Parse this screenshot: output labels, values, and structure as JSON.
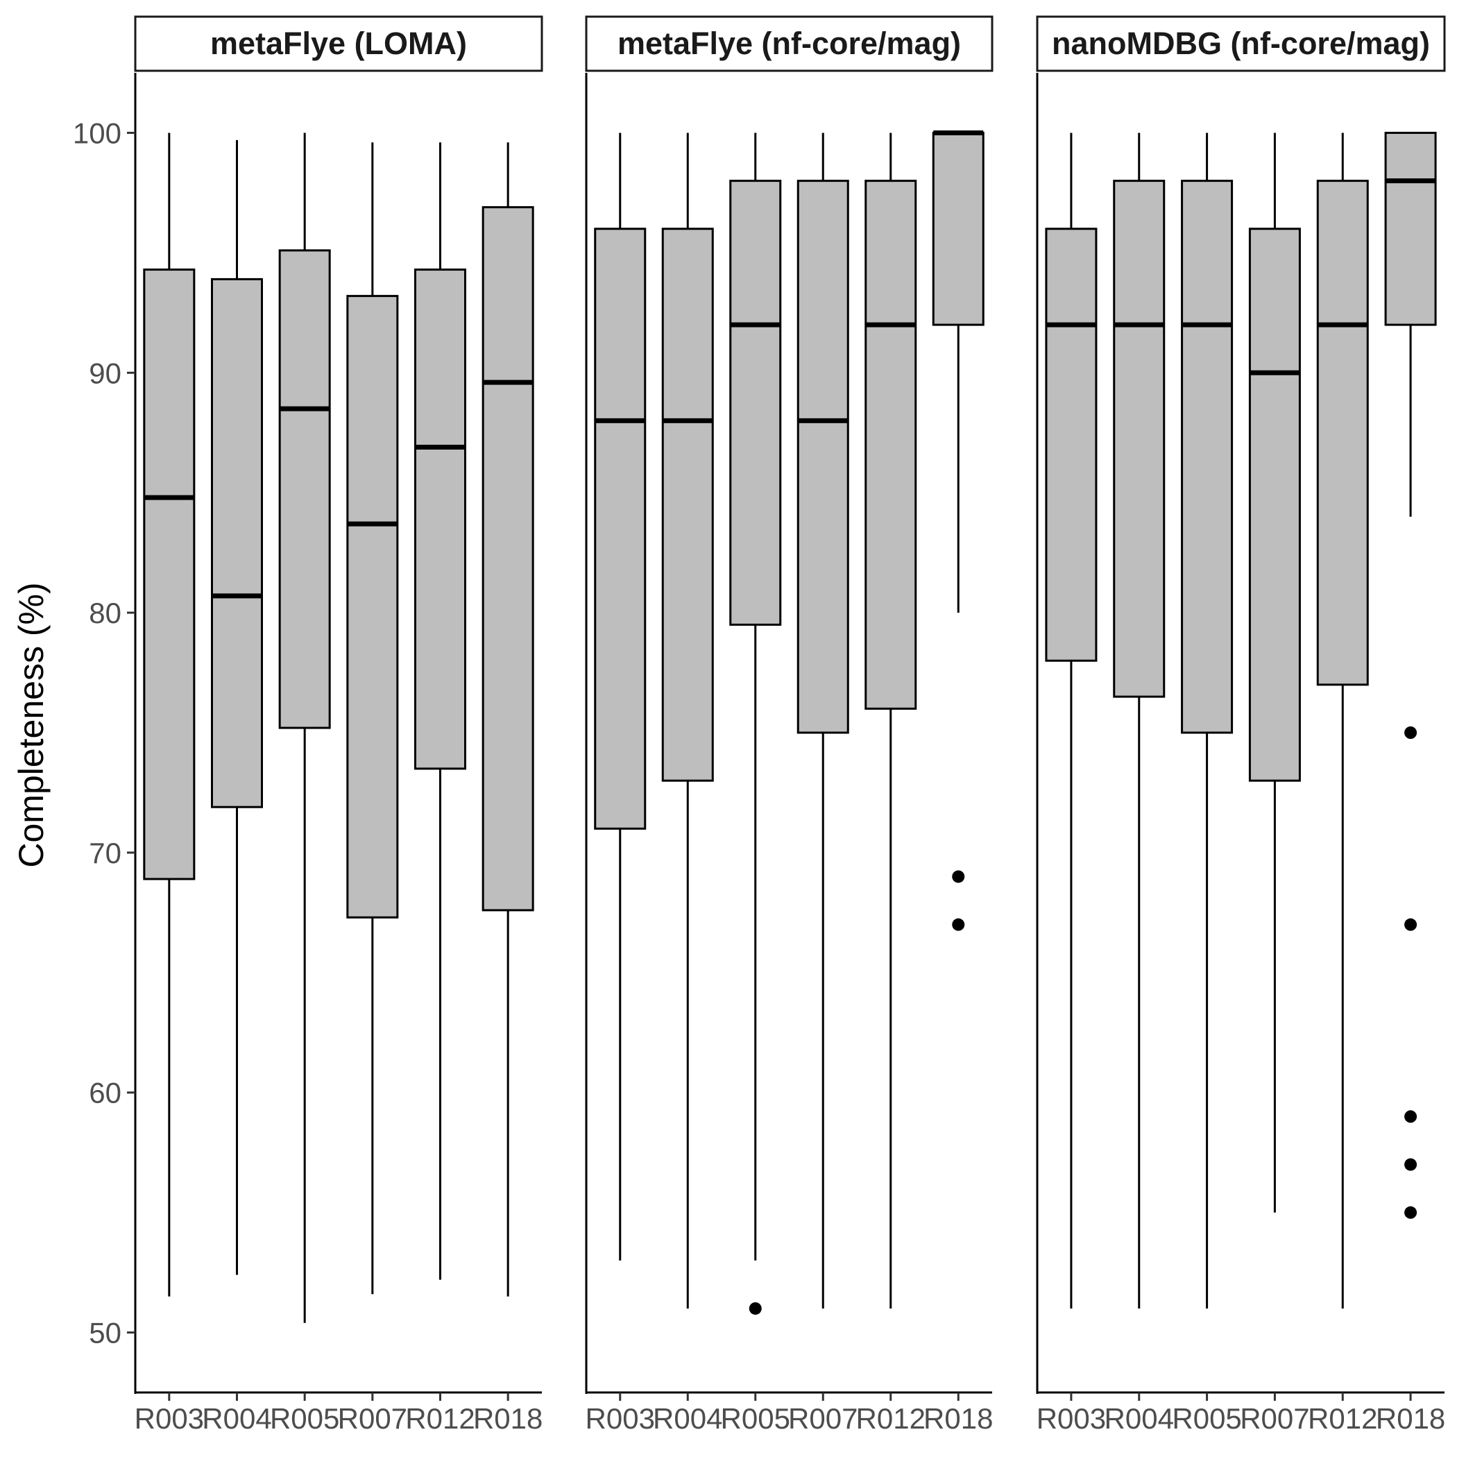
{
  "chart_data": {
    "type": "boxplot",
    "ylabel": "Completeness (%)",
    "xlabel": "",
    "ylim": [
      47.5,
      102.5
    ],
    "yticks": [
      50,
      60,
      70,
      80,
      90,
      100
    ],
    "grid": false,
    "box_fill": "#bebebe",
    "line_color": "#000000",
    "categories": [
      "R003",
      "R004",
      "R005",
      "R007",
      "R012",
      "R018"
    ],
    "panels": [
      {
        "title": "metaFlye (LOMA)",
        "boxes": [
          {
            "category": "R003",
            "whisker_low": 51.5,
            "q1": 68.9,
            "median": 84.8,
            "q3": 94.3,
            "whisker_high": 100,
            "outliers": []
          },
          {
            "category": "R004",
            "whisker_low": 52.4,
            "q1": 71.9,
            "median": 80.7,
            "q3": 93.9,
            "whisker_high": 99.7,
            "outliers": []
          },
          {
            "category": "R005",
            "whisker_low": 50.4,
            "q1": 75.2,
            "median": 88.5,
            "q3": 95.1,
            "whisker_high": 100,
            "outliers": []
          },
          {
            "category": "R007",
            "whisker_low": 51.6,
            "q1": 67.3,
            "median": 83.7,
            "q3": 93.2,
            "whisker_high": 99.6,
            "outliers": []
          },
          {
            "category": "R012",
            "whisker_low": 52.2,
            "q1": 73.5,
            "median": 86.9,
            "q3": 94.3,
            "whisker_high": 99.6,
            "outliers": []
          },
          {
            "category": "R018",
            "whisker_low": 51.5,
            "q1": 67.6,
            "median": 89.6,
            "q3": 96.9,
            "whisker_high": 99.6,
            "outliers": []
          }
        ]
      },
      {
        "title": "metaFlye (nf-core/mag)",
        "boxes": [
          {
            "category": "R003",
            "whisker_low": 53,
            "q1": 71,
            "median": 88,
            "q3": 96,
            "whisker_high": 100,
            "outliers": []
          },
          {
            "category": "R004",
            "whisker_low": 51,
            "q1": 73,
            "median": 88,
            "q3": 96,
            "whisker_high": 100,
            "outliers": []
          },
          {
            "category": "R005",
            "whisker_low": 53,
            "q1": 79.5,
            "median": 92,
            "q3": 98,
            "whisker_high": 100,
            "outliers": [
              51
            ]
          },
          {
            "category": "R007",
            "whisker_low": 51,
            "q1": 75,
            "median": 88,
            "q3": 98,
            "whisker_high": 100,
            "outliers": []
          },
          {
            "category": "R012",
            "whisker_low": 51,
            "q1": 76,
            "median": 92,
            "q3": 98,
            "whisker_high": 100,
            "outliers": []
          },
          {
            "category": "R018",
            "whisker_low": 80,
            "q1": 92,
            "median": 100,
            "q3": 100,
            "whisker_high": 100,
            "outliers": [
              69,
              67
            ]
          }
        ]
      },
      {
        "title": "nanoMDBG (nf-core/mag)",
        "boxes": [
          {
            "category": "R003",
            "whisker_low": 51,
            "q1": 78,
            "median": 92,
            "q3": 96,
            "whisker_high": 100,
            "outliers": []
          },
          {
            "category": "R004",
            "whisker_low": 51,
            "q1": 76.5,
            "median": 92,
            "q3": 98,
            "whisker_high": 100,
            "outliers": []
          },
          {
            "category": "R005",
            "whisker_low": 51,
            "q1": 75,
            "median": 92,
            "q3": 98,
            "whisker_high": 100,
            "outliers": []
          },
          {
            "category": "R007",
            "whisker_low": 55,
            "q1": 73,
            "median": 90,
            "q3": 96,
            "whisker_high": 100,
            "outliers": []
          },
          {
            "category": "R012",
            "whisker_low": 51,
            "q1": 77,
            "median": 92,
            "q3": 98,
            "whisker_high": 100,
            "outliers": []
          },
          {
            "category": "R018",
            "whisker_low": 84,
            "q1": 92,
            "median": 98,
            "q3": 100,
            "whisker_high": 100,
            "outliers": [
              75,
              67,
              59,
              57,
              55
            ]
          }
        ]
      }
    ]
  }
}
